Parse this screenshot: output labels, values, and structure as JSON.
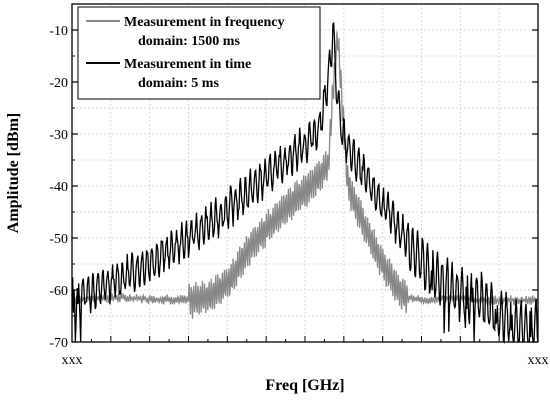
{
  "chart_data": {
    "type": "line",
    "xlabel": "Freq [GHz]",
    "ylabel": "Amplitude [dBm]",
    "ylim": [
      -70,
      -5
    ],
    "y_ticks": [
      -10,
      -20,
      -30,
      -40,
      -50,
      -60,
      -70
    ],
    "x_tick_labels": [
      "xxx",
      "xxx"
    ],
    "grid": true,
    "legend_position": "top-left",
    "legend": [
      {
        "line1": "Measurement in frequency",
        "line2": "domain: 1500 ms"
      },
      {
        "line1": "Measurement in time",
        "line2": "domain: 5 ms"
      }
    ],
    "series": [
      {
        "name": "Measurement in frequency domain: 1500 ms",
        "color": "#888888",
        "x": [
          0,
          0.04,
          0.1,
          0.2,
          0.26,
          0.3,
          0.34,
          0.38,
          0.42,
          0.46,
          0.5,
          0.53,
          0.55,
          0.56,
          0.57,
          0.58,
          0.59,
          0.6,
          0.62,
          0.65,
          0.68,
          0.7,
          0.72,
          0.75,
          0.8,
          0.9,
          1.0
        ],
        "y": [
          -62,
          -61.5,
          -61.5,
          -61.8,
          -62,
          -61,
          -58,
          -52,
          -48,
          -44,
          -41,
          -38,
          -36,
          -22,
          -11,
          -24,
          -38,
          -42,
          -46,
          -52,
          -57,
          -60,
          -61.5,
          -62,
          -61.5,
          -62,
          -62
        ]
      },
      {
        "name": "Measurement in time domain: 5 ms",
        "color": "#000000",
        "x": [
          0,
          0.02,
          0.05,
          0.08,
          0.12,
          0.16,
          0.2,
          0.25,
          0.3,
          0.34,
          0.38,
          0.42,
          0.46,
          0.5,
          0.53,
          0.55,
          0.56,
          0.57,
          0.58,
          0.6,
          0.62,
          0.64,
          0.67,
          0.7,
          0.73,
          0.76,
          0.8,
          0.84,
          0.88,
          0.92,
          0.96,
          1.0
        ],
        "y": [
          -62,
          -61,
          -60,
          -59,
          -57,
          -55,
          -53,
          -50,
          -47,
          -44,
          -41,
          -38,
          -35,
          -32,
          -29,
          -20,
          -10,
          -24,
          -30,
          -34,
          -37,
          -40,
          -44,
          -48,
          -52,
          -56,
          -59,
          -61,
          -62,
          -65,
          -67,
          -67
        ]
      }
    ]
  }
}
